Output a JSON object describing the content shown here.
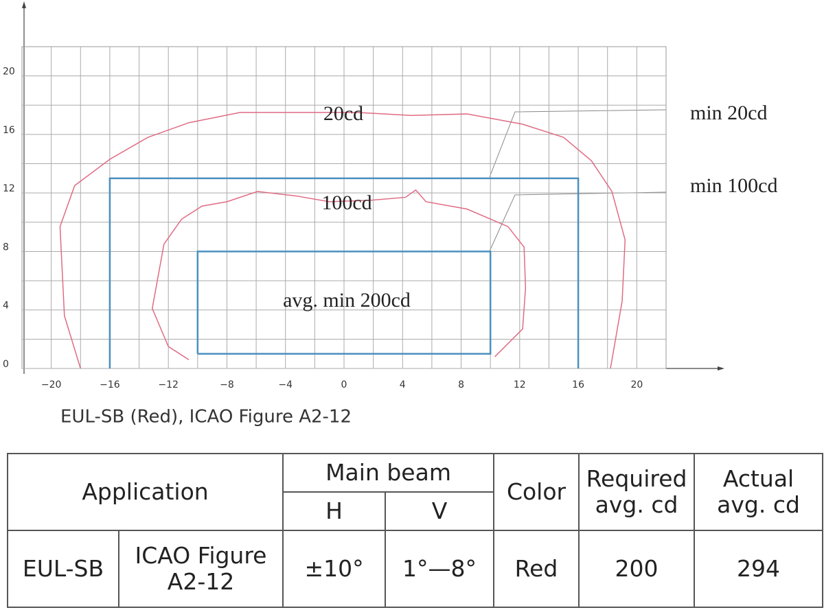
{
  "chart_data": {
    "type": "line",
    "caption": "EUL-SB (Red), ICAO Figure A2-12",
    "xlim": [
      -22,
      22
    ],
    "ylim": [
      0,
      22
    ],
    "xticks": [
      {
        "value": -20,
        "label": "−20"
      },
      {
        "value": -16,
        "label": "−16"
      },
      {
        "value": -12,
        "label": "−12"
      },
      {
        "value": -8,
        "label": "−8"
      },
      {
        "value": -4,
        "label": "−4"
      },
      0,
      4,
      8,
      12,
      16,
      20
    ],
    "yticks": [
      0,
      4,
      8,
      12,
      16,
      20
    ],
    "grid": true,
    "annotations": [
      "20cd",
      "100cd",
      "avg. min 200cd"
    ],
    "series": [
      {
        "name": "20cd",
        "color": "#e06b84",
        "x": [
          -18.0,
          -19.1,
          -19.4,
          -18.4,
          -16.0,
          -13.4,
          -10.6,
          -7.1,
          -3.8,
          0.9,
          4.6,
          8.4,
          12.2,
          15.0,
          16.9,
          18.3,
          19.2,
          19.0,
          18.2
        ],
        "values": [
          0,
          3.6,
          9.7,
          12.5,
          14.3,
          15.8,
          16.8,
          17.5,
          17.5,
          17.5,
          17.3,
          17.4,
          16.7,
          15.8,
          14.2,
          12.1,
          8.8,
          4.6,
          0
        ]
      },
      {
        "name": "100cd",
        "color": "#e06b84",
        "x": [
          -10.6,
          -12.0,
          -13.1,
          -12.5,
          -12.3,
          -11.1,
          -9.7,
          -8.0,
          -5.9,
          -3.3,
          -1.0,
          1.8,
          4.2,
          4.9,
          5.6,
          8.4,
          11.2,
          12.3,
          12.4,
          12.2,
          10.3
        ],
        "values": [
          0.6,
          1.5,
          4.1,
          7.4,
          8.5,
          10.2,
          11.1,
          11.4,
          12.1,
          11.8,
          11.4,
          11.5,
          11.7,
          12.2,
          11.4,
          10.9,
          9.7,
          8.3,
          5.5,
          2.7,
          0.8
        ]
      },
      {
        "name": "min 20cd",
        "color": "#4a8fbf",
        "x": [
          -16,
          -16,
          16,
          16
        ],
        "values": [
          0,
          13,
          13,
          0
        ]
      },
      {
        "name": "min 100cd",
        "color": "#4a8fbf",
        "x": [
          -10,
          -10,
          10,
          10,
          -10
        ],
        "values": [
          1,
          8,
          8,
          1,
          1
        ]
      }
    ]
  },
  "table": {
    "header": [
      "Application",
      "Main beam",
      "Color",
      "Required avg. cd",
      "Actual avg. cd"
    ],
    "subheader": [
      "H",
      "V"
    ],
    "rows": [
      [
        "EUL-SB",
        "ICAO Figure A2-12",
        "±10°",
        "1°—8°",
        "Red",
        200,
        294
      ]
    ]
  }
}
